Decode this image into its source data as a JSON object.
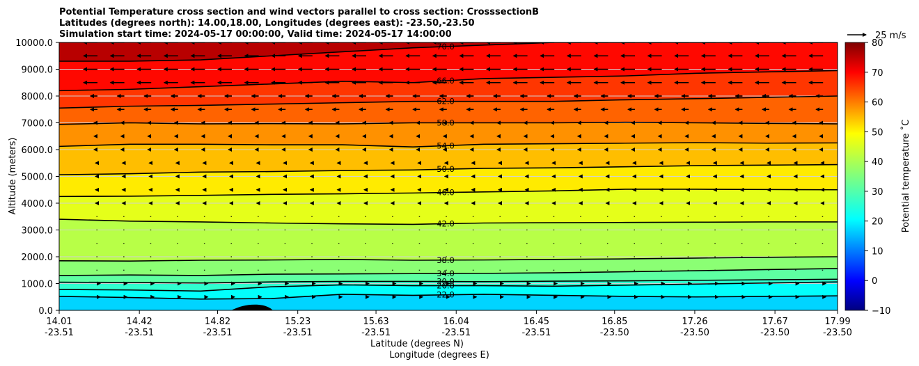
{
  "chart_data": {
    "type": "heatmap",
    "title_lines": [
      "Potential Temperature cross section and wind vectors parallel to cross section: CrosssectionB",
      "Latitudes (degrees north): 14.00,18.00, Longitudes (degrees east): -23.50,-23.50",
      "Simulation start time: 2024-05-17 00:00:00, Valid time: 2024-05-17 14:00:00"
    ],
    "ylabel": "Altitude (meters)",
    "xlabel_lat": "Latitude (degrees N)",
    "xlabel_lon": "Longitude (degrees E)",
    "ylim": [
      0,
      10000
    ],
    "xlim": [
      14.01,
      17.99
    ],
    "y_ticks": [
      "0.0",
      "1000.0",
      "2000.0",
      "3000.0",
      "4000.0",
      "5000.0",
      "6000.0",
      "7000.0",
      "8000.0",
      "9000.0",
      "10000.0"
    ],
    "x_ticks": [
      {
        "lat": "14.01",
        "lon": "-23.51"
      },
      {
        "lat": "14.42",
        "lon": "-23.51"
      },
      {
        "lat": "14.82",
        "lon": "-23.51"
      },
      {
        "lat": "15.23",
        "lon": "-23.51"
      },
      {
        "lat": "15.63",
        "lon": "-23.51"
      },
      {
        "lat": "16.04",
        "lon": "-23.51"
      },
      {
        "lat": "16.45",
        "lon": "-23.51"
      },
      {
        "lat": "16.85",
        "lon": "-23.50"
      },
      {
        "lat": "17.26",
        "lon": "-23.50"
      },
      {
        "lat": "17.67",
        "lon": "-23.50"
      },
      {
        "lat": "17.99",
        "lon": "-23.50"
      }
    ],
    "colorbar": {
      "label": "Potential temperature $^\\circ$C",
      "label_text": "Potential temperature ˚C",
      "range": [
        -10,
        80
      ],
      "ticks": [
        "80",
        "70",
        "60",
        "50",
        "40",
        "30",
        "20",
        "10",
        "0",
        "−10"
      ],
      "colormap": "jet"
    },
    "quiver_key": "25 m/s",
    "grid": "horizontal",
    "contours": [
      {
        "level": "22.0",
        "y": [
          520,
          480,
          420,
          440,
          600,
          560,
          600,
          560,
          520,
          500,
          520,
          540
        ]
      },
      {
        "level": "26.0",
        "y": [
          780,
          760,
          720,
          880,
          950,
          920,
          920,
          900,
          940,
          980,
          1020,
          1060
        ]
      },
      {
        "level": "30.0",
        "y": [
          1050,
          1040,
          1020,
          1060,
          1080,
          1080,
          1070,
          1090,
          1100,
          1120,
          1140,
          1160
        ]
      },
      {
        "level": "34.0",
        "y": [
          1300,
          1320,
          1300,
          1350,
          1360,
          1370,
          1380,
          1400,
          1440,
          1480,
          1520,
          1560
        ]
      },
      {
        "level": "38.0",
        "y": [
          1850,
          1840,
          1870,
          1880,
          1900,
          1870,
          1880,
          1900,
          1920,
          1950,
          1980,
          2000
        ]
      },
      {
        "level": "42.0",
        "y": [
          3400,
          3330,
          3300,
          3260,
          3230,
          3210,
          3260,
          3270,
          3280,
          3290,
          3300,
          3300
        ]
      },
      {
        "level": "46.0",
        "y": [
          4250,
          4260,
          4290,
          4330,
          4350,
          4380,
          4420,
          4460,
          4520,
          4520,
          4510,
          4500
        ]
      },
      {
        "level": "50.0",
        "y": [
          5060,
          5100,
          5160,
          5180,
          5220,
          5240,
          5300,
          5320,
          5360,
          5400,
          5420,
          5440
        ]
      },
      {
        "level": "54.0",
        "y": [
          6120,
          6200,
          6200,
          6180,
          6180,
          6100,
          6200,
          6220,
          6240,
          6260,
          6240,
          6250
        ]
      },
      {
        "level": "58.0",
        "y": [
          6940,
          7000,
          6960,
          6970,
          6960,
          7000,
          7000,
          7000,
          7020,
          7000,
          6980,
          6960
        ]
      },
      {
        "level": "62.0",
        "y": [
          7550,
          7620,
          7650,
          7700,
          7750,
          7800,
          7800,
          7800,
          7860,
          7900,
          7950,
          8000
        ]
      },
      {
        "level": "66.0",
        "y": [
          8200,
          8250,
          8350,
          8450,
          8550,
          8500,
          8650,
          8700,
          8750,
          8850,
          8900,
          8950
        ]
      },
      {
        "level": "70.0",
        "y": [
          9300,
          9300,
          9350,
          9500,
          9650,
          9800,
          9900,
          10000,
          10000,
          10000,
          10000,
          10000
        ]
      }
    ]
  }
}
